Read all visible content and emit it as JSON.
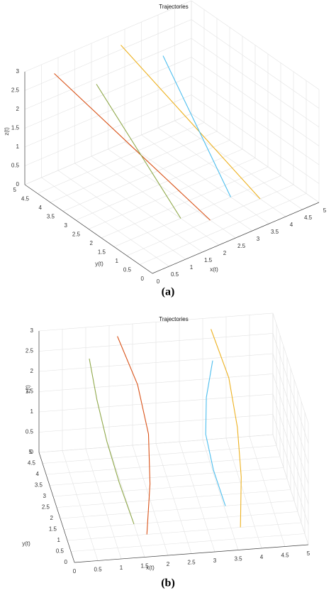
{
  "chart_data": [
    {
      "type": "line3d",
      "title": "Trajectories",
      "xlabel": "x(t)",
      "ylabel": "y(t)",
      "zlabel": "z(t)",
      "caption": "(a)",
      "xlim": [
        0,
        5
      ],
      "ylim": [
        0,
        5
      ],
      "zlim": [
        0,
        3
      ],
      "xticks": [
        0,
        0.5,
        1,
        1.5,
        2,
        2.5,
        3,
        3.5,
        4,
        4.5,
        5
      ],
      "yticks": [
        0,
        0.5,
        1,
        1.5,
        2,
        2.5,
        3,
        3.5,
        4,
        4.5,
        5
      ],
      "zticks": [
        0,
        0.5,
        1,
        1.5,
        2,
        2.5,
        3
      ],
      "grid": true,
      "series": [
        {
          "color": "#d95319",
          "x": [
            0.5,
            1.5,
            2.5
          ],
          "y": [
            4.5,
            2.75,
            1
          ],
          "z": [
            3,
            1.5,
            0
          ]
        },
        {
          "color": "#8fa84a",
          "x": [
            1,
            1.5,
            2
          ],
          "y": [
            3.5,
            2.5,
            1.5
          ],
          "z": [
            3,
            1.5,
            0
          ]
        },
        {
          "color": "#edb120",
          "x": [
            2.5,
            3.25,
            4
          ],
          "y": [
            4.5,
            2.75,
            1
          ],
          "z": [
            3,
            1.5,
            0
          ]
        },
        {
          "color": "#4dbeee",
          "x": [
            3,
            3.25,
            3.5
          ],
          "y": [
            3.5,
            2.5,
            1.5
          ],
          "z": [
            3,
            1.5,
            0
          ]
        }
      ]
    },
    {
      "type": "line3d",
      "title": "Trajectories",
      "xlabel": "x(t)",
      "ylabel": "y(t)",
      "zlabel": "z(t)",
      "caption": "(b)",
      "xlim": [
        0,
        5
      ],
      "ylim": [
        0,
        5
      ],
      "zlim": [
        0,
        3
      ],
      "xticks": [
        0,
        0.5,
        1,
        1.5,
        2,
        2.5,
        3,
        3.5,
        4,
        4.5,
        5
      ],
      "yticks": [
        0,
        0.5,
        1,
        1.5,
        2,
        2.5,
        3,
        3.5,
        4,
        4.5,
        5
      ],
      "zticks": [
        0,
        0.5,
        1,
        1.5,
        2,
        2.5,
        3
      ],
      "grid": true,
      "series": [
        {
          "color": "#d95319",
          "x": [
            1.6,
            1.9,
            2.0,
            1.9,
            1.7
          ],
          "y": [
            4.5,
            3.63,
            2.75,
            1.88,
            1
          ],
          "z": [
            3,
            2.25,
            1.5,
            0.75,
            0
          ]
        },
        {
          "color": "#8fa84a",
          "x": [
            1.0,
            1.05,
            1.15,
            1.3,
            1.5
          ],
          "y": [
            4.5,
            3.75,
            3,
            2.25,
            1.5
          ],
          "z": [
            2.5,
            1.88,
            1.25,
            0.63,
            0
          ]
        },
        {
          "color": "#edb120",
          "x": [
            3.6,
            3.85,
            3.9,
            3.85,
            3.7
          ],
          "y": [
            4.5,
            3.63,
            2.75,
            1.88,
            1
          ],
          "z": [
            3,
            2.25,
            1.5,
            0.75,
            0
          ]
        },
        {
          "color": "#4dbeee",
          "x": [
            3.56,
            3.35,
            3.26,
            3.35,
            3.53
          ],
          "y": [
            4,
            3.5,
            3,
            2.5,
            2
          ],
          "z": [
            2.5,
            1.88,
            1.25,
            0.63,
            0
          ]
        }
      ]
    }
  ]
}
